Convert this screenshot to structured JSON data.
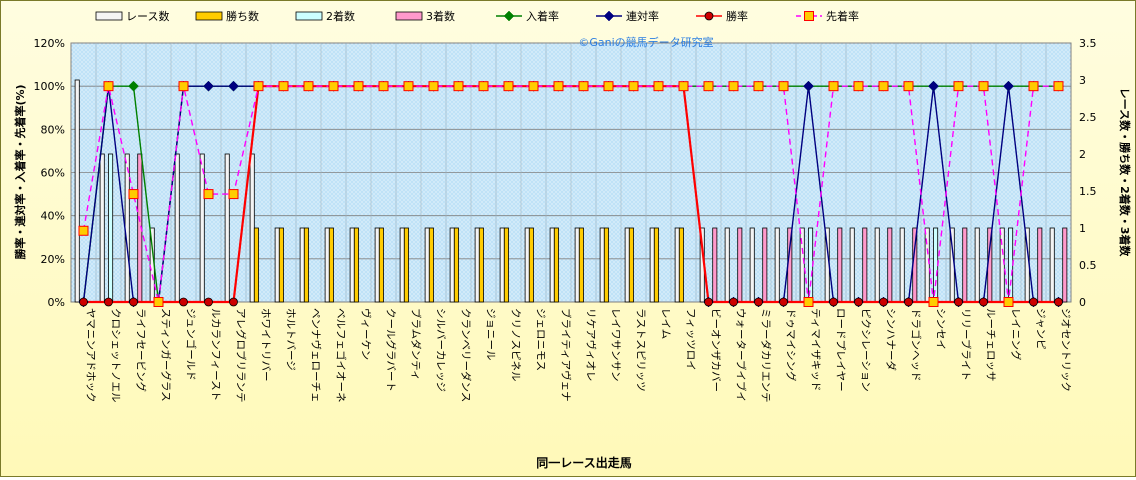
{
  "chart_data": {
    "type": "bar",
    "watermark": "©Ganiの競馬データ研究室",
    "xlabel": "同一レース出走馬",
    "ylabel_left": "勝率・連対率・入着率・先着率(%)",
    "ylabel_right": "レース数・勝ち数・2着数・3着数",
    "ylim_left": [
      0,
      120
    ],
    "yticks_left": [
      "0%",
      "20%",
      "40%",
      "60%",
      "80%",
      "100%",
      "120%"
    ],
    "ylim_right": [
      0,
      3.5
    ],
    "yticks_right": [
      "0",
      "0.5",
      "1",
      "1.5",
      "2",
      "2.5",
      "3",
      "3.5"
    ],
    "grid": true,
    "legend_position": "top",
    "categories": [
      "ヤマニンアドホック",
      "クロシェットノエル",
      "ライフセービング",
      "スティンガーグラス",
      "ジュンゴールド",
      "ルカランフィースト",
      "アレグロブリランテ",
      "ホワイトリバー",
      "ホルトバージ",
      "ペンナヴェローチェ",
      "ベルフェゴイオーネ",
      "ヴィーケン",
      "クールグラバート",
      "ブラムダンティ",
      "シルバーカレッジ",
      "クランベリーダンス",
      "ジョニール",
      "クリノスピネル",
      "ジェロニモス",
      "ブライティアヴェナ",
      "リケアヴィオレ",
      "レイワサンサン",
      "ラストスピリッツ",
      "レイム",
      "フィッツロイ",
      "ビーオンザカバー",
      "ウォーターブイブイ",
      "ミラーダカリエンテ",
      "ドゥマイシング",
      "ティマイザキッド",
      "ロードプレイヤー",
      "ピクシレーション",
      "シンハナーダ",
      "ドラゴンヘッド",
      "シンセイ",
      "リリーブライト",
      "ルーチェロッサ",
      "レイニング",
      "ジャンピ",
      "ジオセントリック"
    ],
    "series": [
      {
        "name": "レース数",
        "kind": "bar",
        "axis": "right",
        "color": "#f4f4f4",
        "values": [
          3,
          2,
          2,
          1,
          2,
          2,
          2,
          2,
          1,
          1,
          1,
          1,
          1,
          1,
          1,
          1,
          1,
          1,
          1,
          1,
          1,
          1,
          1,
          1,
          1,
          1,
          1,
          1,
          1,
          1,
          1,
          1,
          1,
          1,
          1,
          1,
          1,
          1,
          1,
          1
        ]
      },
      {
        "name": "勝ち数",
        "kind": "bar",
        "axis": "right",
        "color": "#ffcc00",
        "values": [
          0,
          0,
          0,
          0,
          0,
          0,
          0,
          1,
          1,
          1,
          1,
          1,
          1,
          1,
          1,
          1,
          1,
          1,
          1,
          1,
          1,
          1,
          1,
          1,
          1,
          0,
          0,
          0,
          0,
          0,
          0,
          0,
          0,
          0,
          0,
          0,
          0,
          0,
          0,
          0
        ]
      },
      {
        "name": "2着数",
        "kind": "bar",
        "axis": "right",
        "color": "#ccffff",
        "values": [
          0,
          2,
          0,
          0,
          0,
          0,
          0,
          0,
          0,
          0,
          0,
          0,
          0,
          0,
          0,
          0,
          0,
          0,
          0,
          0,
          0,
          0,
          0,
          0,
          0,
          0,
          0,
          0,
          0,
          1,
          0,
          0,
          0,
          0,
          1,
          0,
          0,
          1,
          0,
          0
        ]
      },
      {
        "name": "3着数",
        "kind": "bar",
        "axis": "right",
        "color": "#ff99cc",
        "values": [
          0,
          0,
          2,
          0,
          0,
          0,
          0,
          0,
          0,
          0,
          0,
          0,
          0,
          0,
          0,
          0,
          0,
          0,
          0,
          0,
          0,
          0,
          0,
          0,
          0,
          1,
          1,
          1,
          1,
          0,
          1,
          1,
          1,
          1,
          0,
          1,
          1,
          0,
          1,
          1
        ]
      },
      {
        "name": "入着率",
        "kind": "line",
        "axis": "left",
        "color": "#008000",
        "marker": "diamond",
        "values": [
          0,
          100,
          100,
          0,
          100,
          100,
          100,
          100,
          100,
          100,
          100,
          100,
          100,
          100,
          100,
          100,
          100,
          100,
          100,
          100,
          100,
          100,
          100,
          100,
          100,
          100,
          100,
          100,
          100,
          100,
          100,
          100,
          100,
          100,
          100,
          100,
          100,
          100,
          100,
          100
        ]
      },
      {
        "name": "連対率",
        "kind": "line",
        "axis": "left",
        "color": "#000080",
        "marker": "diamond",
        "values": [
          0,
          100,
          0,
          0,
          100,
          100,
          100,
          100,
          100,
          100,
          100,
          100,
          100,
          100,
          100,
          100,
          100,
          100,
          100,
          100,
          100,
          100,
          100,
          100,
          100,
          0,
          0,
          0,
          0,
          100,
          0,
          0,
          0,
          0,
          100,
          0,
          0,
          100,
          0,
          0
        ]
      },
      {
        "name": "勝率",
        "kind": "line",
        "axis": "left",
        "color": "#ff0000",
        "marker": "circle",
        "values": [
          0,
          0,
          0,
          0,
          0,
          0,
          0,
          100,
          100,
          100,
          100,
          100,
          100,
          100,
          100,
          100,
          100,
          100,
          100,
          100,
          100,
          100,
          100,
          100,
          100,
          0,
          0,
          0,
          0,
          0,
          0,
          0,
          0,
          0,
          0,
          0,
          0,
          0,
          0,
          0
        ]
      },
      {
        "name": "先着率",
        "kind": "line",
        "axis": "left",
        "color": "#ff00ff",
        "marker": "square",
        "dashed": true,
        "values": [
          33,
          100,
          50,
          0,
          100,
          50,
          50,
          100,
          100,
          100,
          100,
          100,
          100,
          100,
          100,
          100,
          100,
          100,
          100,
          100,
          100,
          100,
          100,
          100,
          100,
          100,
          100,
          100,
          100,
          0,
          100,
          100,
          100,
          100,
          0,
          100,
          100,
          0,
          100,
          100
        ]
      }
    ]
  }
}
